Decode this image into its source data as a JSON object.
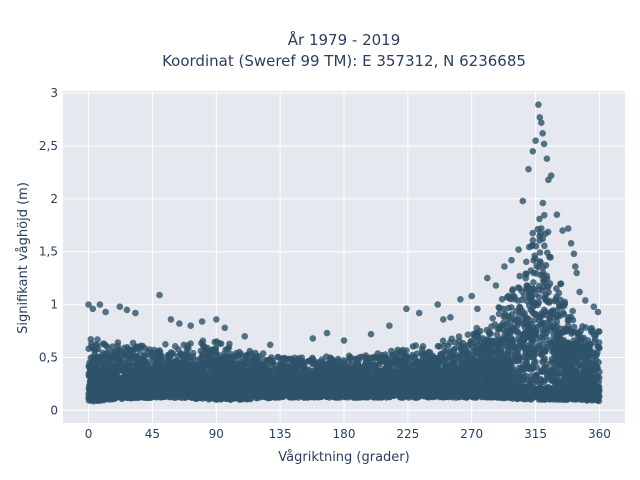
{
  "chart_data": {
    "type": "scatter",
    "title_line1": "År 1979 - 2019",
    "title_line2": "Koordinat (Sweref 99 TM): E 357312, N 6236685",
    "xlabel": "Vågriktning (grader)",
    "ylabel": "Signifikant våghöjd (m)",
    "xlim": [
      -18,
      378
    ],
    "ylim": [
      -0.12,
      3.02
    ],
    "x_ticks": [
      0,
      45,
      90,
      135,
      180,
      225,
      270,
      315,
      360
    ],
    "x_tick_labels": [
      "0",
      "45",
      "90",
      "135",
      "180",
      "225",
      "270",
      "315",
      "360"
    ],
    "y_ticks": [
      0,
      0.5,
      1,
      1.5,
      2,
      2.5,
      3
    ],
    "y_tick_labels": [
      "0",
      "0,5",
      "1",
      "1,5",
      "2",
      "2,5",
      "3"
    ],
    "grid": true,
    "colors": {
      "marker": "#2e5269",
      "plot_bg": "#e5e8ef",
      "grid": "#ffffff",
      "text": "#2a3f5f"
    },
    "series": [
      {
        "envelope_direction": [
          0,
          15,
          30,
          45,
          60,
          75,
          90,
          105,
          120,
          135,
          150,
          165,
          180,
          195,
          210,
          225,
          240,
          255,
          270,
          285,
          300,
          310,
          315,
          320,
          330,
          345,
          360
        ],
        "envelope_dense_top": [
          0.72,
          0.68,
          0.66,
          0.62,
          0.64,
          0.66,
          0.7,
          0.62,
          0.56,
          0.52,
          0.52,
          0.52,
          0.52,
          0.54,
          0.56,
          0.6,
          0.64,
          0.7,
          0.78,
          0.92,
          1.25,
          1.75,
          2.2,
          2.0,
          1.3,
          0.95,
          0.8
        ],
        "envelope_dense_bottom": [
          0.08,
          0.1,
          0.11,
          0.12,
          0.12,
          0.11,
          0.1,
          0.1,
          0.11,
          0.12,
          0.12,
          0.12,
          0.12,
          0.12,
          0.12,
          0.12,
          0.12,
          0.12,
          0.12,
          0.12,
          0.11,
          0.1,
          0.1,
          0.1,
          0.1,
          0.1,
          0.08
        ],
        "outliers": [
          {
            "x": 0,
            "y": 1.0
          },
          {
            "x": 3,
            "y": 0.96
          },
          {
            "x": 8,
            "y": 1.0
          },
          {
            "x": 12,
            "y": 0.93
          },
          {
            "x": 22,
            "y": 0.98
          },
          {
            "x": 27,
            "y": 0.95
          },
          {
            "x": 33,
            "y": 0.92
          },
          {
            "x": 50,
            "y": 1.09
          },
          {
            "x": 58,
            "y": 0.86
          },
          {
            "x": 64,
            "y": 0.82
          },
          {
            "x": 72,
            "y": 0.8
          },
          {
            "x": 80,
            "y": 0.84
          },
          {
            "x": 90,
            "y": 0.86
          },
          {
            "x": 96,
            "y": 0.78
          },
          {
            "x": 110,
            "y": 0.7
          },
          {
            "x": 128,
            "y": 0.62
          },
          {
            "x": 158,
            "y": 0.68
          },
          {
            "x": 168,
            "y": 0.73
          },
          {
            "x": 180,
            "y": 0.66
          },
          {
            "x": 199,
            "y": 0.72
          },
          {
            "x": 212,
            "y": 0.8
          },
          {
            "x": 224,
            "y": 0.96
          },
          {
            "x": 233,
            "y": 0.92
          },
          {
            "x": 246,
            "y": 1.0
          },
          {
            "x": 250,
            "y": 0.86
          },
          {
            "x": 255,
            "y": 0.88
          },
          {
            "x": 262,
            "y": 1.05
          },
          {
            "x": 270,
            "y": 1.08
          },
          {
            "x": 274,
            "y": 0.96
          },
          {
            "x": 281,
            "y": 1.25
          },
          {
            "x": 287,
            "y": 1.18
          },
          {
            "x": 293,
            "y": 1.36
          },
          {
            "x": 298,
            "y": 1.42
          },
          {
            "x": 303,
            "y": 1.52
          },
          {
            "x": 306,
            "y": 1.98
          },
          {
            "x": 310,
            "y": 2.28
          },
          {
            "x": 313,
            "y": 2.45
          },
          {
            "x": 315,
            "y": 2.55
          },
          {
            "x": 317,
            "y": 2.89
          },
          {
            "x": 318,
            "y": 2.77
          },
          {
            "x": 319,
            "y": 2.72
          },
          {
            "x": 320,
            "y": 2.62
          },
          {
            "x": 321,
            "y": 2.52
          },
          {
            "x": 323,
            "y": 2.38
          },
          {
            "x": 324,
            "y": 2.18
          },
          {
            "x": 326,
            "y": 2.22
          },
          {
            "x": 330,
            "y": 1.85
          },
          {
            "x": 334,
            "y": 1.7
          },
          {
            "x": 338,
            "y": 1.72
          },
          {
            "x": 340,
            "y": 1.58
          },
          {
            "x": 342,
            "y": 1.48
          },
          {
            "x": 343,
            "y": 1.36
          },
          {
            "x": 344,
            "y": 1.3
          },
          {
            "x": 346,
            "y": 1.12
          },
          {
            "x": 350,
            "y": 1.04
          },
          {
            "x": 356,
            "y": 0.98
          },
          {
            "x": 359,
            "y": 0.93
          }
        ]
      }
    ]
  }
}
